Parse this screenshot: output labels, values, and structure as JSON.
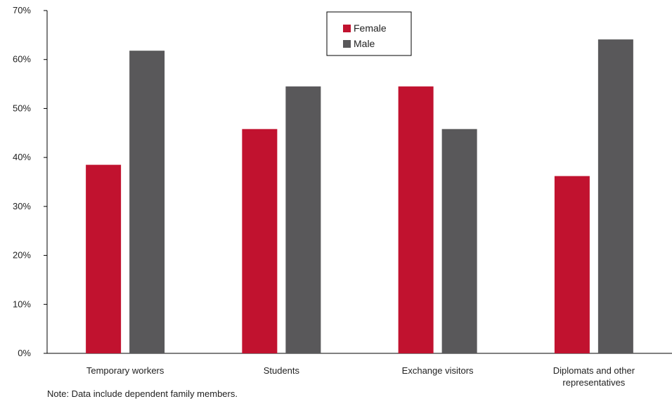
{
  "chart_data": {
    "type": "bar",
    "categories": [
      [
        "Temporary workers"
      ],
      [
        "Students"
      ],
      [
        "Exchange visitors"
      ],
      [
        "Diplomats and other",
        "representatives"
      ]
    ],
    "series": [
      {
        "name": "Female",
        "color": "#c1122f",
        "values": [
          38.5,
          45.8,
          54.5,
          36.2
        ]
      },
      {
        "name": "Male",
        "color": "#59585a",
        "values": [
          61.8,
          54.5,
          45.8,
          64.1
        ]
      }
    ],
    "ylim": [
      0,
      70
    ],
    "yticks": [
      0,
      10,
      20,
      30,
      40,
      50,
      60,
      70
    ],
    "ytick_suffix": "%",
    "legend_position": "top-center",
    "grid": false
  },
  "note": "Note: Data include dependent family members."
}
